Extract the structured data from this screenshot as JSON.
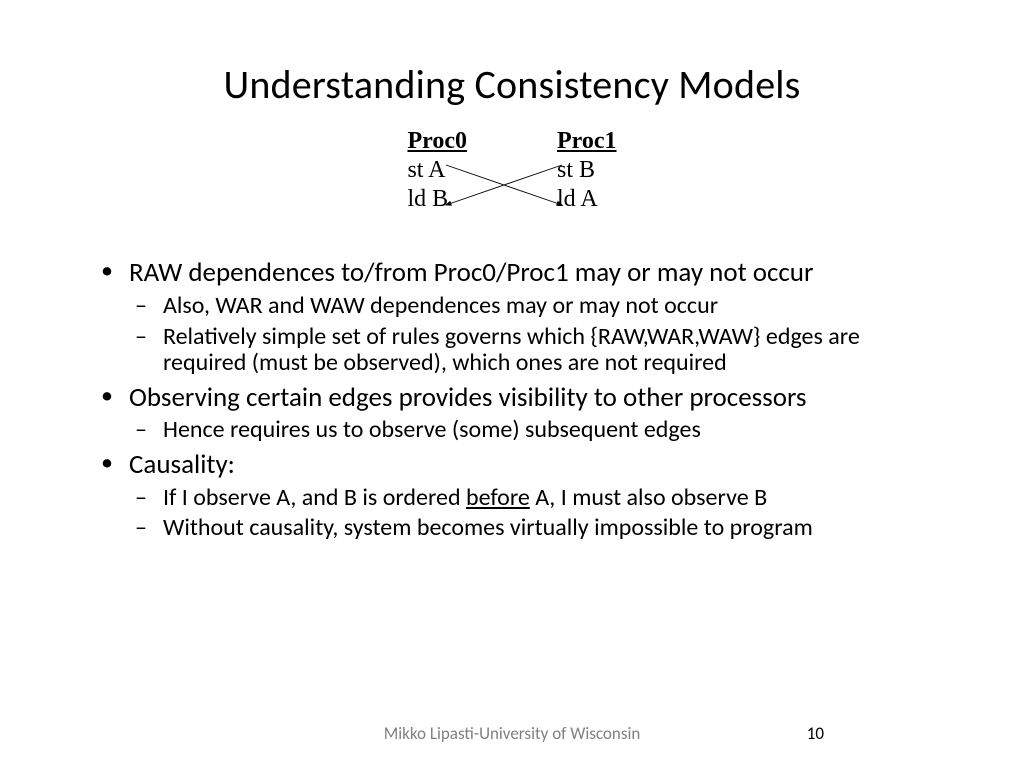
{
  "title": "Understanding Consistency Models",
  "diagram": {
    "col0": {
      "header": "Proc0",
      "r1": "st A",
      "r2": "ld B"
    },
    "col1": {
      "header": "Proc1",
      "r1": "st B",
      "r2": "ld A"
    },
    "arrow_color": "#000000",
    "arrow_width": 0.9
  },
  "bullets": [
    {
      "text": "RAW dependences to/from Proc0/Proc1 may or may not occur",
      "sub": [
        "Also, WAR and WAW dependences may or may not occur",
        "Relatively simple set of rules governs which {RAW,WAR,WAW} edges are required (must be observed), which ones are not required"
      ]
    },
    {
      "text": "Observing certain edges provides visibility to other processors",
      "sub": [
        "Hence requires us to observe (some) subsequent edges"
      ]
    },
    {
      "text": "Causality:",
      "sub_html": [
        "If I observe A, and B is ordered <span class=\"underline\">before</span> A, I must also observe B",
        "Without causality, system becomes virtually impossible to program"
      ]
    }
  ],
  "footer": "Mikko Lipasti-University of Wisconsin",
  "page": "10",
  "colors": {
    "text": "#000000",
    "footer": "#808080",
    "background": "#ffffff"
  },
  "fontsize": {
    "title": 40,
    "bullet": 27,
    "subbullet": 24,
    "proc": 24,
    "footer": 17
  }
}
